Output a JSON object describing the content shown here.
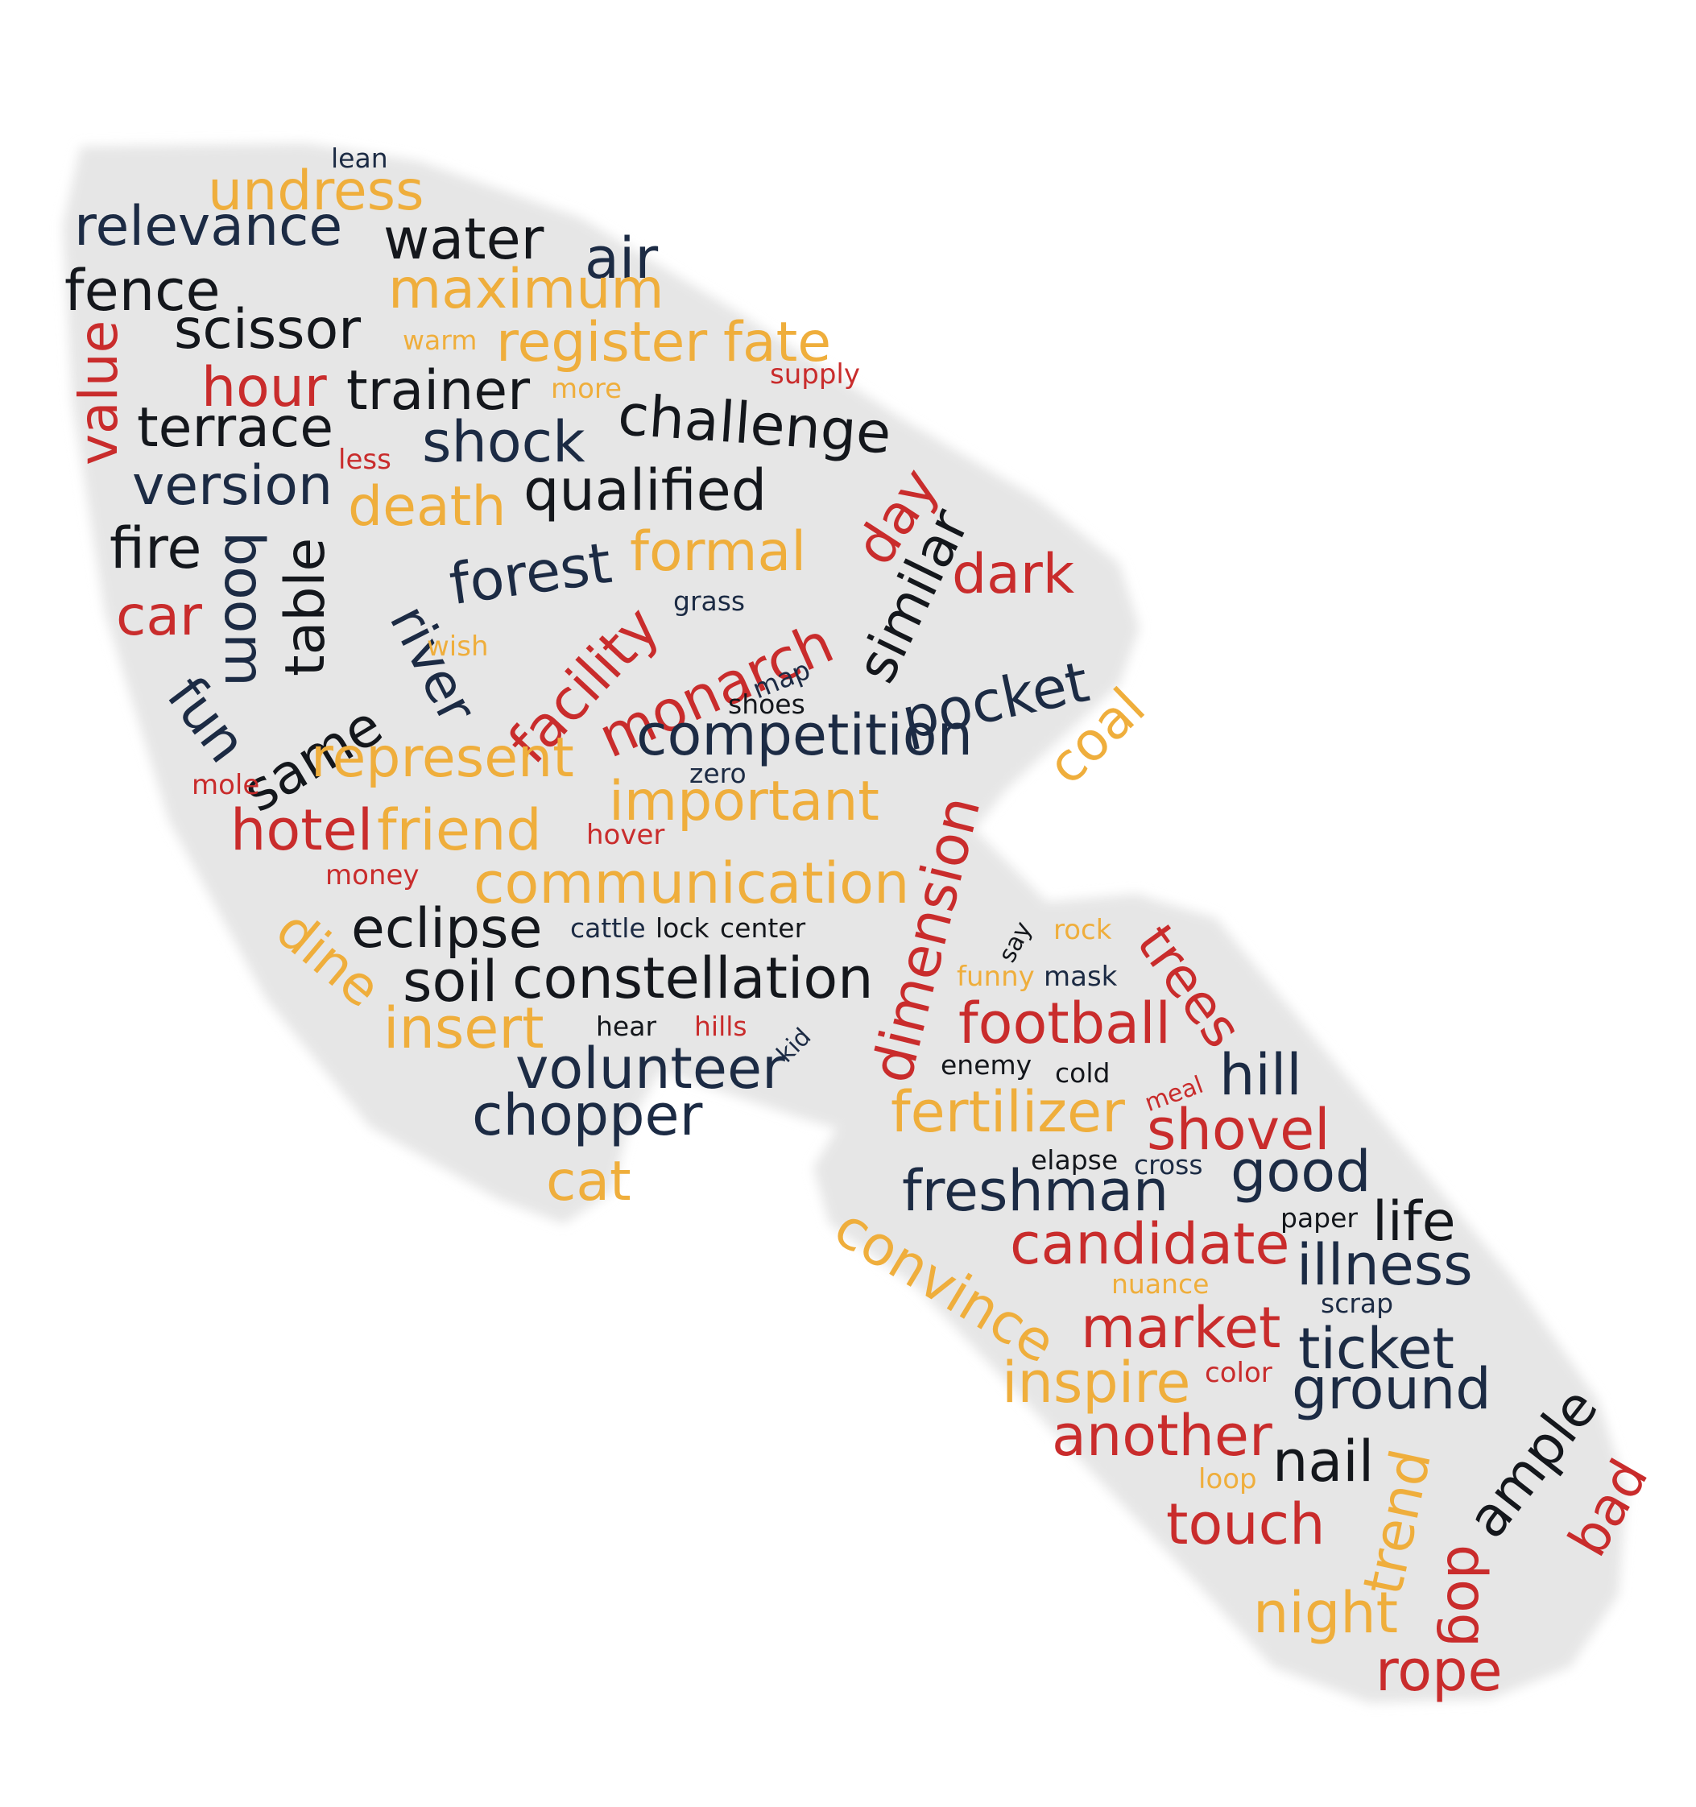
{
  "colors": {
    "navy": "#1c2b44",
    "black": "#14171c",
    "red": "#c92c2c",
    "gold": "#efae3c",
    "shape_fill": "#e6e6e6",
    "background": "#ffffff"
  },
  "words": {
    "lean": "lean",
    "undress": "undress",
    "relevance": "relevance",
    "water": "water",
    "air": "air",
    "fence": "fence",
    "maximum": "maximum",
    "scissor": "scissor",
    "warm": "warm",
    "register": "register",
    "fate": "fate",
    "value": "value",
    "hour": "hour",
    "trainer": "trainer",
    "more": "more",
    "supply": "supply",
    "challenge": "challenge",
    "terrace": "terrace",
    "shock": "shock",
    "less": "less",
    "version": "version",
    "death": "death",
    "qualified": "qualified",
    "day": "day",
    "fire": "fire",
    "boom": "boom",
    "table": "table",
    "forest": "forest",
    "formal": "formal",
    "similar": "similar",
    "dark": "dark",
    "car": "car",
    "grass": "grass",
    "river": "river",
    "facility": "facility",
    "monarch": "monarch",
    "pocket": "pocket",
    "fun": "fun",
    "wish": "wish",
    "map": "map",
    "same": "same",
    "shoes": "shoes",
    "coal": "coal",
    "represent": "represent",
    "competition": "competition",
    "zero": "zero",
    "mole": "mole",
    "important": "important",
    "hotel": "hotel",
    "friend": "friend",
    "hover": "hover",
    "dimension": "dimension",
    "money": "money",
    "communication": "communication",
    "dine": "dine",
    "eclipse": "eclipse",
    "cattle": "cattle",
    "lock": "lock",
    "center": "center",
    "say": "say",
    "rock": "rock",
    "trees": "trees",
    "soil": "soil",
    "constellation": "constellation",
    "funny": "funny",
    "mask": "mask",
    "insert": "insert",
    "hear": "hear",
    "hills": "hills",
    "kid": "kid",
    "football": "football",
    "volunteer": "volunteer",
    "enemy": "enemy",
    "cold": "cold",
    "meal": "meal",
    "hill": "hill",
    "chopper": "chopper",
    "fertilizer": "fertilizer",
    "shovel": "shovel",
    "elapse": "elapse",
    "cross": "cross",
    "good": "good",
    "cat": "cat",
    "freshman": "freshman",
    "convince": "convince",
    "paper": "paper",
    "life": "life",
    "candidate": "candidate",
    "illness": "illness",
    "nuance": "nuance",
    "scrap": "scrap",
    "market": "market",
    "ticket": "ticket",
    "color": "color",
    "inspire": "inspire",
    "ground": "ground",
    "ample": "ample",
    "another": "another",
    "trend": "trend",
    "nail": "nail",
    "bad": "bad",
    "loop": "loop",
    "touch": "touch",
    "dog": "dog",
    "night": "night",
    "rope": "rope"
  }
}
